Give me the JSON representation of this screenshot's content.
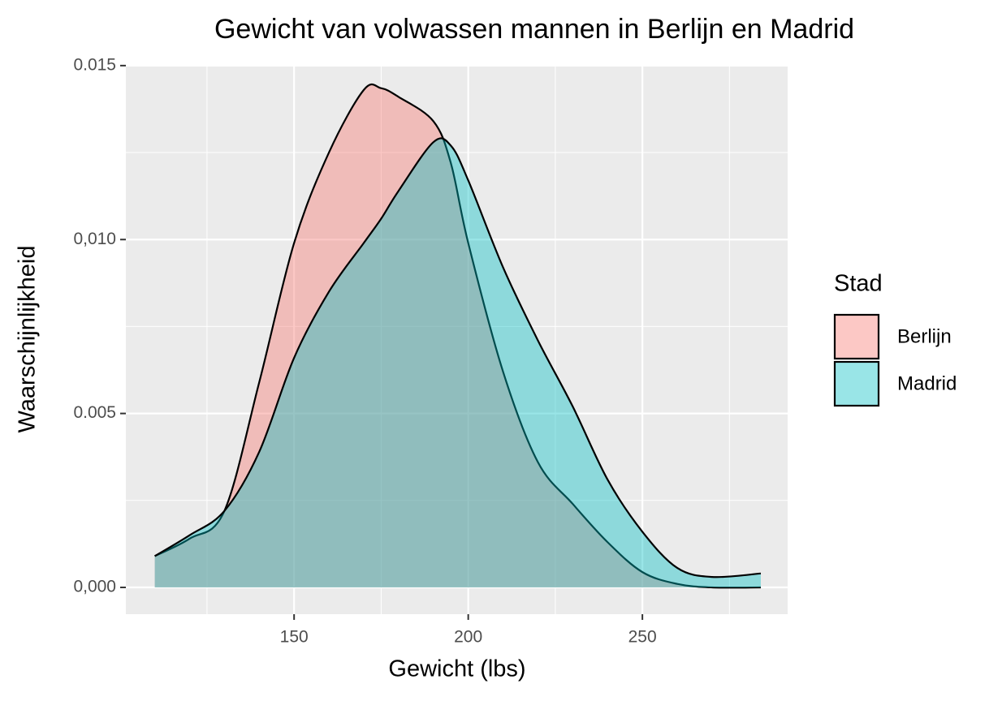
{
  "chart_data": {
    "type": "density",
    "title": "Gewicht van volwassen mannen in Berlijn en Madrid",
    "x_label": "Gewicht (lbs)",
    "y_label": "Waarschijnlijkheid",
    "legend_title": "Stad",
    "legend": "right",
    "grid": true,
    "alpha": 0.4,
    "x": [
      110,
      120,
      130,
      140,
      150,
      160,
      170,
      175,
      180,
      190,
      195,
      200,
      210,
      220,
      230,
      240,
      250,
      260,
      270,
      284
    ],
    "series": [
      {
        "name": "Berlijn",
        "color": "#F8766D",
        "values": [
          0.0009,
          0.0014,
          0.0022,
          0.0059,
          0.0099,
          0.0125,
          0.0143,
          0.01435,
          0.0141,
          0.0134,
          0.0122,
          0.0099,
          0.0062,
          0.0036,
          0.0024,
          0.0013,
          0.00044,
          0.0001,
          0.0,
          0.0
        ]
      },
      {
        "name": "Madrid",
        "color": "#00BFC4",
        "values": [
          0.0009,
          0.0015,
          0.0022,
          0.0039,
          0.0066,
          0.0085,
          0.0099,
          0.0106,
          0.0114,
          0.0128,
          0.0127,
          0.0117,
          0.0092,
          0.0071,
          0.0052,
          0.0031,
          0.0016,
          0.00056,
          0.0003,
          0.0004
        ]
      }
    ],
    "xlim": [
      101.7,
      291.7
    ],
    "xticks": [
      150,
      200,
      250
    ],
    "x_minor_ticks": [
      125,
      175,
      225,
      275
    ],
    "ylim": [
      -0.00077,
      0.01502
    ],
    "yticks": [
      {
        "value": 0,
        "label": "0,000"
      },
      0.005,
      {
        "value": 0.01,
        "label": "0,010"
      },
      0.015
    ],
    "y_minor_ticks": [
      0.0025,
      0.0075,
      0.0125
    ]
  }
}
